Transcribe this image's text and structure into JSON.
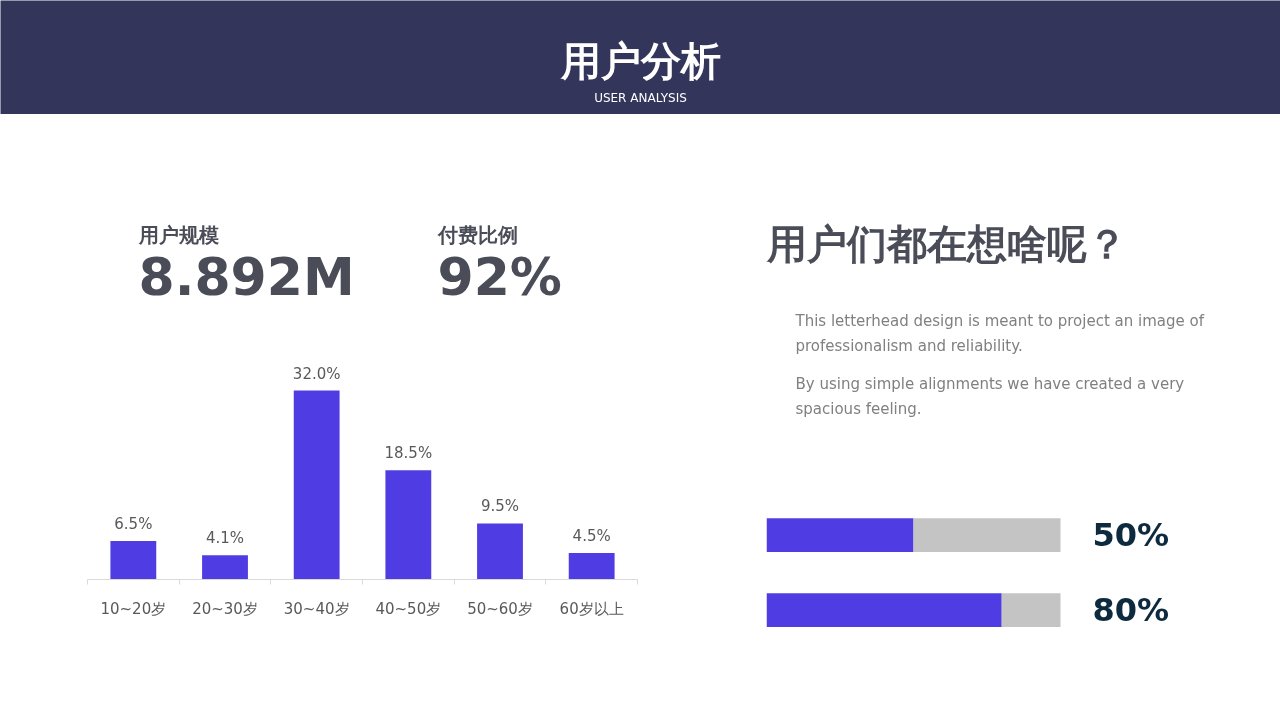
{
  "chart_data": [
    {
      "type": "other",
      "title": "用户分析",
      "subtitle": "USER ANALYSIS"
    },
    {
      "type": "other",
      "annotations": [
        "用户规模",
        "8.892M",
        "付费比例",
        "92%"
      ]
    },
    {
      "type": "bar",
      "categories": [
        "10~20岁",
        "20~30岁",
        "30~40岁",
        "40~50岁",
        "50~60岁",
        "60岁以上"
      ],
      "values": [
        6.5,
        4.1,
        32.0,
        18.5,
        9.5,
        4.5
      ],
      "color": "#503ce3",
      "value_labels": [
        "6.5%",
        "4.1%",
        "32.0%",
        "18.5%",
        "9.5%",
        "4.5%"
      ]
    },
    {
      "type": "other",
      "title": "用户们都在想啥呢？",
      "annotations": [
        "This letterhead design is meant to project an image of professionalism and reliability.",
        "By using simple alignments we have created a very spacious feeling."
      ]
    },
    {
      "type": "bar",
      "orientation": "horizontal",
      "stacked": true,
      "categories": [
        null,
        null
      ],
      "series": [
        {
          "color": "#503ce3",
          "values": [
            50,
            80
          ],
          "value_labels": [
            "50%",
            "80%"
          ]
        },
        {
          "color": "#c4c4c4",
          "values": [
            50,
            20
          ]
        }
      ]
    }
  ]
}
